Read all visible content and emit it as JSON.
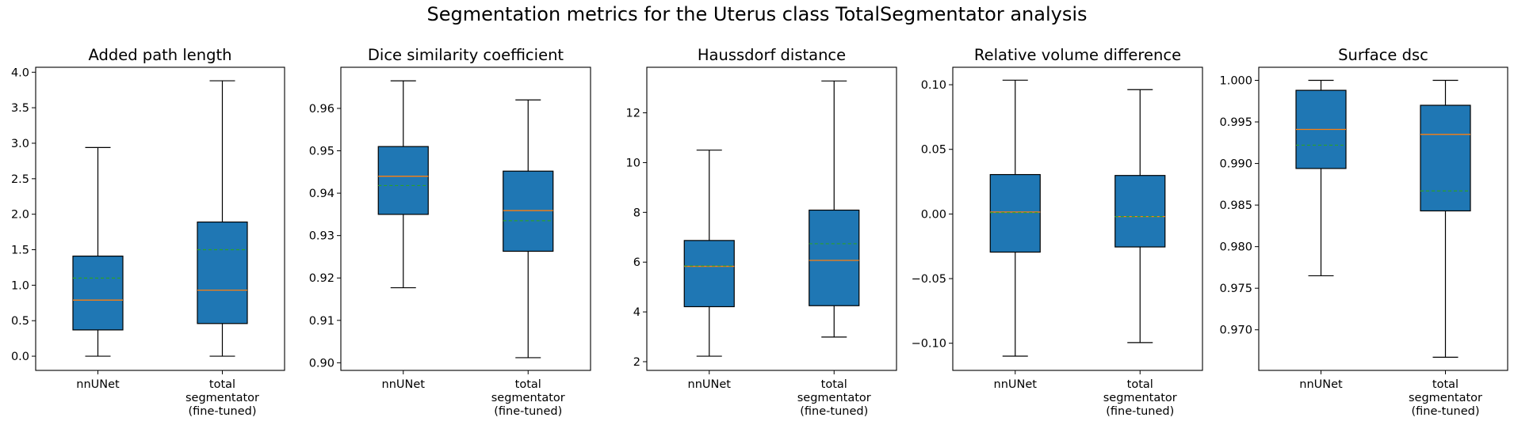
{
  "figure": {
    "suptitle": "Segmentation metrics for the Uterus class TotalSegmentator analysis"
  },
  "colors": {
    "box_fill": "#1f77b4",
    "median_line": "#ff7f0e",
    "mean_line": "#2ca02c",
    "whisker": "#000000"
  },
  "chart_data": [
    {
      "type": "box",
      "title": "Added path length",
      "categories": [
        "nnUNet",
        "total\nsegmentator\n(fine-tuned)"
      ],
      "ylim": [
        -0.2,
        4.07
      ],
      "yticks": [
        0.0,
        0.5,
        1.0,
        1.5,
        2.0,
        2.5,
        3.0,
        3.5,
        4.0
      ],
      "ytick_labels": [
        "0.0",
        "0.5",
        "1.0",
        "1.5",
        "2.0",
        "2.5",
        "3.0",
        "3.5",
        "4.0"
      ],
      "boxes": [
        {
          "whislo": 0.0,
          "q1": 0.37,
          "med": 0.79,
          "mean": 1.1,
          "q3": 1.41,
          "whishi": 2.94
        },
        {
          "whislo": 0.0,
          "q1": 0.46,
          "med": 0.93,
          "mean": 1.5,
          "q3": 1.89,
          "whishi": 3.88
        }
      ]
    },
    {
      "type": "box",
      "title": "Dice similarity coefficient",
      "categories": [
        "nnUNet",
        "total\nsegmentator\n(fine-tuned)"
      ],
      "ylim": [
        0.8982,
        0.9697
      ],
      "yticks": [
        0.9,
        0.91,
        0.92,
        0.93,
        0.94,
        0.95,
        0.96
      ],
      "ytick_labels": [
        "0.90",
        "0.91",
        "0.92",
        "0.93",
        "0.94",
        "0.95",
        "0.96"
      ],
      "boxes": [
        {
          "whislo": 0.9177,
          "q1": 0.935,
          "med": 0.944,
          "mean": 0.9418,
          "q3": 0.951,
          "whishi": 0.9665
        },
        {
          "whislo": 0.9012,
          "q1": 0.9263,
          "med": 0.9359,
          "mean": 0.9335,
          "q3": 0.9452,
          "whishi": 0.962
        }
      ]
    },
    {
      "type": "box",
      "title": "Haussdorf distance",
      "categories": [
        "nnUNet",
        "total\nsegmentator\n(fine-tuned)"
      ],
      "ylim": [
        1.65,
        13.83
      ],
      "yticks": [
        2,
        4,
        6,
        8,
        10,
        12
      ],
      "ytick_labels": [
        "2",
        "4",
        "6",
        "8",
        "10",
        "12"
      ],
      "boxes": [
        {
          "whislo": 2.22,
          "q1": 4.21,
          "med": 5.83,
          "mean": 5.85,
          "q3": 6.87,
          "whishi": 10.5
        },
        {
          "whislo": 2.99,
          "q1": 4.25,
          "med": 6.07,
          "mean": 6.74,
          "q3": 8.09,
          "whishi": 13.28
        }
      ]
    },
    {
      "type": "box",
      "title": "Relative volume difference",
      "categories": [
        "nnUNet",
        "total\nsegmentator\n(fine-tuned)"
      ],
      "ylim": [
        -0.121,
        0.1135
      ],
      "yticks": [
        -0.1,
        -0.05,
        0.0,
        0.05,
        0.1
      ],
      "ytick_labels": [
        "−0.10",
        "−0.05",
        "0.00",
        "0.05",
        "0.10"
      ],
      "boxes": [
        {
          "whislo": -0.11,
          "q1": -0.0295,
          "med": 0.0015,
          "mean": 0.001,
          "q3": 0.0305,
          "whishi": 0.1035
        },
        {
          "whislo": -0.0995,
          "q1": -0.0255,
          "med": -0.002,
          "mean": -0.002,
          "q3": 0.0298,
          "whishi": 0.0962
        }
      ]
    },
    {
      "type": "box",
      "title": "Surface dsc",
      "categories": [
        "nnUNet",
        "total\nsegmentator\n(fine-tuned)"
      ],
      "ylim": [
        0.96512,
        1.00157
      ],
      "yticks": [
        0.97,
        0.975,
        0.98,
        0.985,
        0.99,
        0.995,
        1.0
      ],
      "ytick_labels": [
        "0.970",
        "0.975",
        "0.980",
        "0.985",
        "0.990",
        "0.995",
        "1.000"
      ],
      "boxes": [
        {
          "whislo": 0.9765,
          "q1": 0.9894,
          "med": 0.9941,
          "mean": 0.9922,
          "q3": 0.9988,
          "whishi": 1.0
        },
        {
          "whislo": 0.9667,
          "q1": 0.9843,
          "med": 0.9935,
          "mean": 0.9867,
          "q3": 0.997,
          "whishi": 1.0
        }
      ]
    }
  ]
}
